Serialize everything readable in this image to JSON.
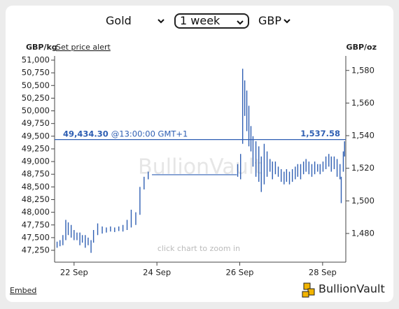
{
  "controls": {
    "metal": "Gold",
    "period": "1 week",
    "currency": "GBP"
  },
  "links": {
    "alert": "Set price alert",
    "embed": "Embed"
  },
  "brand": "BullionVault",
  "chart_data": {
    "type": "range-bar",
    "y_label": "GBP/kg",
    "y2_label": "GBP/oz",
    "watermark": "BullionVault",
    "hint": "click chart to zoom in",
    "color": "#2f5fb3",
    "xlim": [
      21.53,
      28.56
    ],
    "xticks": [
      {
        "value": 22,
        "label": "22 Sep"
      },
      {
        "value": 24,
        "label": "24 Sep"
      },
      {
        "value": 26,
        "label": "26 Sep"
      },
      {
        "value": 28,
        "label": "28 Sep"
      }
    ],
    "ylim": [
      47016,
      51083
    ],
    "yticks": [
      {
        "value": 47250,
        "label": "47,250"
      },
      {
        "value": 47500,
        "label": "47,500"
      },
      {
        "value": 47750,
        "label": "47,750"
      },
      {
        "value": 48000,
        "label": "48,000"
      },
      {
        "value": 48250,
        "label": "48,250"
      },
      {
        "value": 48500,
        "label": "48,500"
      },
      {
        "value": 48750,
        "label": "48,750"
      },
      {
        "value": 49000,
        "label": "49,000"
      },
      {
        "value": 49250,
        "label": "49,250"
      },
      {
        "value": 49500,
        "label": "49,500"
      },
      {
        "value": 49750,
        "label": "49,750"
      },
      {
        "value": 50000,
        "label": "50,000"
      },
      {
        "value": 50250,
        "label": "50,250"
      },
      {
        "value": 50500,
        "label": "50,500"
      },
      {
        "value": 50750,
        "label": "50,750"
      },
      {
        "value": 51000,
        "label": "51,000"
      }
    ],
    "y2lim": [
      1462.4,
      1588.9
    ],
    "y2ticks": [
      {
        "value": 1480,
        "label": "1,480"
      },
      {
        "value": 1500,
        "label": "1,500"
      },
      {
        "value": 1520,
        "label": "1,520"
      },
      {
        "value": 1540,
        "label": "1,540"
      },
      {
        "value": 1560,
        "label": "1,560"
      },
      {
        "value": 1580,
        "label": "1,580"
      }
    ],
    "x": [
      21.59,
      21.66,
      21.73,
      21.8,
      21.86,
      21.93,
      22.0,
      22.07,
      22.14,
      22.2,
      22.27,
      22.34,
      22.41,
      22.47,
      22.57,
      22.68,
      22.78,
      22.88,
      22.98,
      23.08,
      23.18,
      23.28,
      23.38,
      23.49,
      23.59,
      23.69,
      23.79,
      25.95,
      26.02,
      26.07,
      26.12,
      26.17,
      26.22,
      26.27,
      26.32,
      26.39,
      26.46,
      26.52,
      26.59,
      26.66,
      26.73,
      26.79,
      26.86,
      26.93,
      27.0,
      27.07,
      27.13,
      27.2,
      27.27,
      27.34,
      27.4,
      27.47,
      27.54,
      27.6,
      27.67,
      27.74,
      27.81,
      27.88,
      27.94,
      28.01,
      28.08,
      28.15,
      28.21,
      28.28,
      28.35,
      28.42,
      28.45,
      28.5,
      28.53
    ],
    "low": [
      47300,
      47330,
      47350,
      47450,
      47550,
      47500,
      47450,
      47450,
      47350,
      47400,
      47300,
      47350,
      47200,
      47400,
      47550,
      47580,
      47600,
      47620,
      47610,
      47630,
      47620,
      47650,
      47700,
      47750,
      47950,
      48450,
      48650,
      48700,
      48650,
      49350,
      49900,
      49600,
      49300,
      49200,
      48900,
      48700,
      48600,
      48400,
      48550,
      48700,
      48800,
      48650,
      48750,
      48700,
      48600,
      48550,
      48600,
      48550,
      48600,
      48650,
      48700,
      48650,
      48750,
      48800,
      48750,
      48700,
      48750,
      48800,
      48750,
      48800,
      48850,
      48900,
      48800,
      48850,
      48700,
      48650,
      48180,
      48800,
      49100
    ],
    "high": [
      47420,
      47450,
      47550,
      47850,
      47800,
      47750,
      47650,
      47600,
      47600,
      47550,
      47550,
      47500,
      47450,
      47650,
      47780,
      47720,
      47700,
      47720,
      47700,
      47720,
      47750,
      47850,
      48050,
      48000,
      48500,
      48700,
      48800,
      48950,
      49150,
      50830,
      50600,
      50400,
      50100,
      49700,
      49500,
      49400,
      49300,
      49100,
      49350,
      49200,
      49050,
      49000,
      49000,
      48900,
      48850,
      48800,
      48850,
      48800,
      48850,
      48900,
      48950,
      48950,
      49000,
      49050,
      49000,
      48950,
      49000,
      48950,
      48950,
      49000,
      49100,
      49150,
      49100,
      49100,
      49050,
      48950,
      48700,
      49200,
      49400
    ],
    "flat": {
      "x": [
        23.88,
        25.93
      ],
      "values": [
        48740,
        48740
      ]
    },
    "current": {
      "value": 49434.3,
      "label": "49,434.30",
      "time": "@13:00:00 GMT+1",
      "value_oz": 1537.58,
      "label_oz": "1,537.58"
    }
  }
}
